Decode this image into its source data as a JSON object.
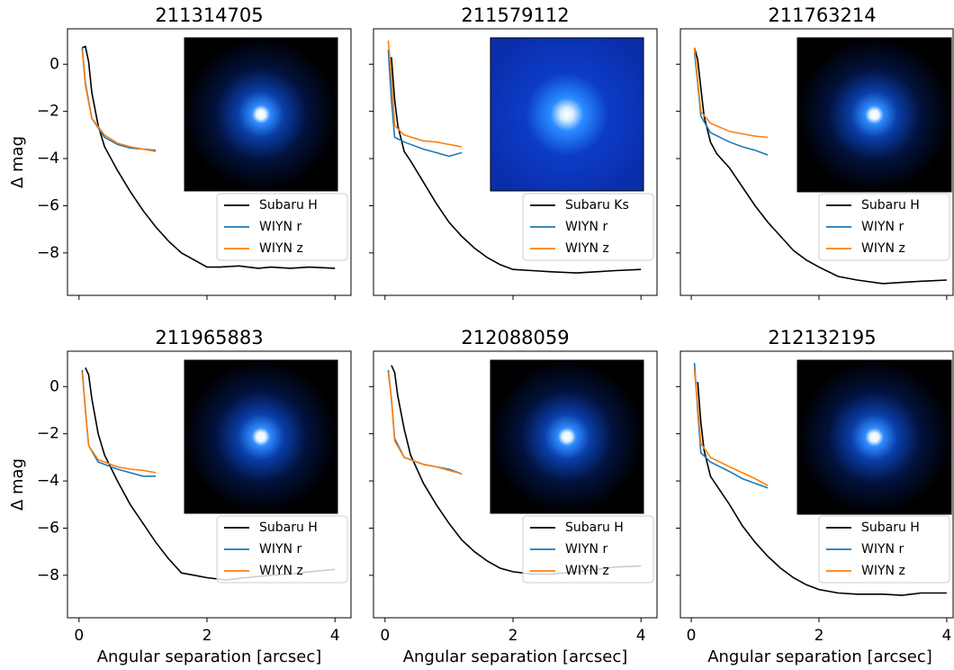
{
  "chart_data": [
    {
      "type": "line",
      "title": "211314705",
      "ylabel": "Δ mag",
      "xlim": [
        -0.18,
        4.25
      ],
      "ylim": [
        -9.8,
        1.5
      ],
      "xticks": [
        0,
        2,
        4
      ],
      "yticks": [
        0,
        {
          "value": -2,
          "label": "−2"
        },
        {
          "value": -4,
          "label": "−4"
        },
        {
          "value": -6,
          "label": "−6"
        },
        {
          "value": -8,
          "label": "−8"
        }
      ],
      "xtick_labels": false,
      "ytick_labels": true,
      "legend": "lower right",
      "series": [
        {
          "name": "Subaru H",
          "color": "#000000",
          "x": [
            0.05,
            0.1,
            0.15,
            0.2,
            0.3,
            0.4,
            0.6,
            0.8,
            1.0,
            1.2,
            1.4,
            1.6,
            1.8,
            2.0,
            2.2,
            2.5,
            2.8,
            3.0,
            3.3,
            3.6,
            4.0
          ],
          "values": [
            0.7,
            0.75,
            0.1,
            -1.2,
            -2.6,
            -3.5,
            -4.5,
            -5.4,
            -6.2,
            -6.9,
            -7.5,
            -8.0,
            -8.3,
            -8.6,
            -8.6,
            -8.55,
            -8.65,
            -8.6,
            -8.65,
            -8.6,
            -8.65
          ]
        },
        {
          "name": "WIYN r",
          "color": "#1f77b4",
          "x": [
            0.05,
            0.1,
            0.2,
            0.4,
            0.6,
            0.8,
            1.0,
            1.2
          ],
          "values": [
            0.7,
            -0.8,
            -2.3,
            -3.1,
            -3.4,
            -3.55,
            -3.6,
            -3.65
          ]
        },
        {
          "name": "WIYN z",
          "color": "#ff7f0e",
          "x": [
            0.05,
            0.1,
            0.2,
            0.4,
            0.6,
            0.8,
            1.0,
            1.2
          ],
          "values": [
            0.6,
            -0.9,
            -2.3,
            -3.0,
            -3.35,
            -3.5,
            -3.6,
            -3.7
          ]
        }
      ]
    },
    {
      "type": "line",
      "title": "211579112",
      "xlim": [
        -0.18,
        4.25
      ],
      "ylim": [
        -9.8,
        1.5
      ],
      "xticks": [
        0,
        2,
        4
      ],
      "yticks": [
        0,
        {
          "value": -2,
          "label": "−2"
        },
        {
          "value": -4,
          "label": "−4"
        },
        {
          "value": -6,
          "label": "−6"
        },
        {
          "value": -8,
          "label": "−8"
        }
      ],
      "xtick_labels": false,
      "ytick_labels": false,
      "legend": "lower right",
      "series": [
        {
          "name": "Subaru Ks",
          "color": "#000000",
          "x": [
            0.1,
            0.15,
            0.2,
            0.3,
            0.4,
            0.6,
            0.8,
            1.0,
            1.2,
            1.4,
            1.6,
            1.8,
            2.0,
            2.3,
            2.6,
            3.0,
            3.3,
            3.6,
            4.0
          ],
          "values": [
            0.3,
            -1.5,
            -2.6,
            -3.7,
            -4.1,
            -5.0,
            -5.9,
            -6.7,
            -7.3,
            -7.8,
            -8.2,
            -8.5,
            -8.7,
            -8.75,
            -8.8,
            -8.85,
            -8.8,
            -8.75,
            -8.7
          ]
        },
        {
          "name": "WIYN r",
          "color": "#1f77b4",
          "x": [
            0.05,
            0.1,
            0.15,
            0.3,
            0.6,
            0.8,
            1.0,
            1.2
          ],
          "values": [
            0.6,
            -1.5,
            -3.1,
            -3.3,
            -3.6,
            -3.75,
            -3.9,
            -3.75
          ]
        },
        {
          "name": "WIYN z",
          "color": "#ff7f0e",
          "x": [
            0.05,
            0.1,
            0.15,
            0.3,
            0.6,
            0.8,
            1.0,
            1.2
          ],
          "values": [
            1.0,
            -0.5,
            -2.6,
            -3.0,
            -3.25,
            -3.3,
            -3.4,
            -3.5
          ]
        }
      ]
    },
    {
      "type": "line",
      "title": "211763214",
      "xlim": [
        -0.17,
        4.1
      ],
      "ylim": [
        -9.8,
        1.5
      ],
      "xticks": [
        0,
        2,
        4
      ],
      "yticks": [
        0,
        {
          "value": -2,
          "label": "−2"
        },
        {
          "value": -4,
          "label": "−4"
        },
        {
          "value": -6,
          "label": "−6"
        },
        {
          "value": -8,
          "label": "−8"
        }
      ],
      "xtick_labels": false,
      "ytick_labels": false,
      "legend": "lower right",
      "series": [
        {
          "name": "Subaru H",
          "color": "#000000",
          "x": [
            0.05,
            0.1,
            0.15,
            0.2,
            0.3,
            0.4,
            0.6,
            0.8,
            1.0,
            1.2,
            1.4,
            1.6,
            1.8,
            2.0,
            2.3,
            2.6,
            3.0,
            3.3,
            3.6,
            4.0
          ],
          "values": [
            0.7,
            0.2,
            -1.0,
            -2.2,
            -3.3,
            -3.8,
            -4.4,
            -5.2,
            -6.0,
            -6.7,
            -7.3,
            -7.9,
            -8.3,
            -8.6,
            -9.0,
            -9.15,
            -9.3,
            -9.25,
            -9.2,
            -9.15
          ]
        },
        {
          "name": "WIYN r",
          "color": "#1f77b4",
          "x": [
            0.05,
            0.1,
            0.15,
            0.3,
            0.6,
            0.8,
            1.0,
            1.2
          ],
          "values": [
            0.5,
            -0.8,
            -2.2,
            -2.9,
            -3.3,
            -3.5,
            -3.65,
            -3.85
          ]
        },
        {
          "name": "WIYN z",
          "color": "#ff7f0e",
          "x": [
            0.05,
            0.1,
            0.15,
            0.3,
            0.6,
            0.8,
            1.0,
            1.2
          ],
          "values": [
            0.7,
            -0.7,
            -2.0,
            -2.5,
            -2.85,
            -2.95,
            -3.05,
            -3.1
          ]
        }
      ]
    },
    {
      "type": "line",
      "title": "211965883",
      "xlabel": "Angular separation [arcsec]",
      "ylabel": "Δ mag",
      "xlim": [
        -0.18,
        4.25
      ],
      "ylim": [
        -9.8,
        1.5
      ],
      "xticks": [
        0,
        2,
        4
      ],
      "yticks": [
        0,
        {
          "value": -2,
          "label": "−2"
        },
        {
          "value": -4,
          "label": "−4"
        },
        {
          "value": -6,
          "label": "−6"
        },
        {
          "value": -8,
          "label": "−8"
        }
      ],
      "xtick_labels": true,
      "ytick_labels": true,
      "legend": "lower right",
      "series": [
        {
          "name": "Subaru H",
          "color": "#000000",
          "x": [
            0.1,
            0.15,
            0.2,
            0.3,
            0.4,
            0.6,
            0.8,
            1.0,
            1.2,
            1.4,
            1.6,
            1.8,
            2.0,
            2.3,
            2.6,
            3.0,
            3.3,
            3.6,
            4.0
          ],
          "values": [
            0.8,
            0.5,
            -0.5,
            -2.0,
            -2.9,
            -4.0,
            -5.0,
            -5.8,
            -6.6,
            -7.3,
            -7.9,
            -8.0,
            -8.1,
            -8.2,
            -8.1,
            -8.0,
            -7.95,
            -7.85,
            -7.75
          ]
        },
        {
          "name": "WIYN r",
          "color": "#1f77b4",
          "x": [
            0.05,
            0.1,
            0.15,
            0.3,
            0.6,
            0.8,
            1.0,
            1.2
          ],
          "values": [
            0.7,
            -1.0,
            -2.5,
            -3.2,
            -3.5,
            -3.65,
            -3.8,
            -3.8
          ]
        },
        {
          "name": "WIYN z",
          "color": "#ff7f0e",
          "x": [
            0.05,
            0.1,
            0.15,
            0.3,
            0.6,
            0.8,
            1.0,
            1.2
          ],
          "values": [
            0.6,
            -1.0,
            -2.5,
            -3.1,
            -3.4,
            -3.5,
            -3.55,
            -3.65
          ]
        }
      ]
    },
    {
      "type": "line",
      "title": "212088059",
      "xlabel": "Angular separation [arcsec]",
      "xlim": [
        -0.18,
        4.25
      ],
      "ylim": [
        -9.8,
        1.5
      ],
      "xticks": [
        0,
        2,
        4
      ],
      "yticks": [
        0,
        {
          "value": -2,
          "label": "−2"
        },
        {
          "value": -4,
          "label": "−4"
        },
        {
          "value": -6,
          "label": "−6"
        },
        {
          "value": -8,
          "label": "−8"
        }
      ],
      "xtick_labels": true,
      "ytick_labels": false,
      "legend": "lower right",
      "series": [
        {
          "name": "Subaru H",
          "color": "#000000",
          "x": [
            0.1,
            0.15,
            0.2,
            0.3,
            0.4,
            0.6,
            0.8,
            1.0,
            1.2,
            1.4,
            1.6,
            1.8,
            2.0,
            2.3,
            2.6,
            3.0,
            3.3,
            3.6,
            4.0
          ],
          "values": [
            0.9,
            0.6,
            -0.4,
            -1.8,
            -2.9,
            -4.1,
            -5.0,
            -5.8,
            -6.5,
            -7.0,
            -7.4,
            -7.7,
            -7.85,
            -7.95,
            -7.95,
            -7.85,
            -7.75,
            -7.65,
            -7.6
          ]
        },
        {
          "name": "WIYN r",
          "color": "#1f77b4",
          "x": [
            0.05,
            0.1,
            0.15,
            0.3,
            0.6,
            0.8,
            1.0,
            1.2
          ],
          "values": [
            0.7,
            -0.5,
            -2.2,
            -3.0,
            -3.3,
            -3.4,
            -3.5,
            -3.7
          ]
        },
        {
          "name": "WIYN z",
          "color": "#ff7f0e",
          "x": [
            0.05,
            0.1,
            0.15,
            0.3,
            0.6,
            0.8,
            1.0,
            1.2
          ],
          "values": [
            0.6,
            -0.5,
            -2.3,
            -3.0,
            -3.3,
            -3.4,
            -3.55,
            -3.7
          ]
        }
      ]
    },
    {
      "type": "line",
      "title": "212132195",
      "xlabel": "Angular separation [arcsec]",
      "xlim": [
        -0.17,
        4.1
      ],
      "ylim": [
        -9.8,
        1.5
      ],
      "xticks": [
        0,
        2,
        4
      ],
      "yticks": [
        0,
        {
          "value": -2,
          "label": "−2"
        },
        {
          "value": -4,
          "label": "−4"
        },
        {
          "value": -6,
          "label": "−6"
        },
        {
          "value": -8,
          "label": "−8"
        }
      ],
      "xtick_labels": true,
      "ytick_labels": false,
      "legend": "lower right",
      "series": [
        {
          "name": "Subaru H",
          "color": "#000000",
          "x": [
            0.1,
            0.15,
            0.2,
            0.3,
            0.4,
            0.6,
            0.8,
            1.0,
            1.2,
            1.4,
            1.6,
            1.8,
            2.0,
            2.3,
            2.6,
            3.0,
            3.3,
            3.6,
            4.0
          ],
          "values": [
            0.2,
            -1.5,
            -2.7,
            -3.8,
            -4.2,
            -5.0,
            -5.9,
            -6.6,
            -7.2,
            -7.7,
            -8.1,
            -8.4,
            -8.6,
            -8.75,
            -8.8,
            -8.8,
            -8.85,
            -8.75,
            -8.75
          ]
        },
        {
          "name": "WIYN r",
          "color": "#1f77b4",
          "x": [
            0.05,
            0.1,
            0.15,
            0.3,
            0.6,
            0.8,
            1.0,
            1.2
          ],
          "values": [
            1.0,
            -1.0,
            -2.8,
            -3.2,
            -3.6,
            -3.9,
            -4.1,
            -4.3
          ]
        },
        {
          "name": "WIYN z",
          "color": "#ff7f0e",
          "x": [
            0.05,
            0.1,
            0.15,
            0.3,
            0.6,
            0.8,
            1.0,
            1.2
          ],
          "values": [
            0.7,
            -0.8,
            -2.4,
            -3.0,
            -3.4,
            -3.65,
            -3.9,
            -4.2
          ]
        }
      ]
    }
  ]
}
